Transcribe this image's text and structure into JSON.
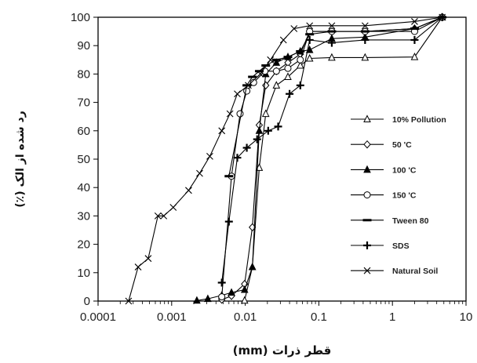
{
  "chart_data": {
    "type": "scatter",
    "xlabel": "قطر ذرات (mm)",
    "ylabel": "رد شده از الک (٪)",
    "xscale": "log",
    "xlim": [
      0.0001,
      10
    ],
    "ylim": [
      0,
      100
    ],
    "x_ticks": [
      "0.0001",
      "0.001",
      "0.01",
      "0.1",
      "1",
      "10"
    ],
    "y_ticks": [
      "0",
      "10",
      "20",
      "30",
      "40",
      "50",
      "60",
      "70",
      "80",
      "90",
      "100"
    ],
    "grid": false,
    "legend_position": "right",
    "series": [
      {
        "name": "10% Pollution",
        "marker": "triangle-open",
        "color": "#000000",
        "points": [
          [
            0.0098,
            0.2
          ],
          [
            0.0125,
            12
          ],
          [
            0.0155,
            47
          ],
          [
            0.019,
            66
          ],
          [
            0.0265,
            76
          ],
          [
            0.038,
            79
          ],
          [
            0.056,
            83
          ],
          [
            0.075,
            85.5
          ],
          [
            0.15,
            85.8
          ],
          [
            0.425,
            85.8
          ],
          [
            2.0,
            86
          ],
          [
            4.75,
            100
          ]
        ]
      },
      {
        "name": "50 'C",
        "marker": "diamond-open",
        "color": "#000000",
        "points": [
          [
            0.0048,
            0.5
          ],
          [
            0.0065,
            1.8
          ],
          [
            0.0098,
            6
          ],
          [
            0.0125,
            26
          ],
          [
            0.0155,
            62
          ],
          [
            0.019,
            76
          ],
          [
            0.0265,
            81
          ],
          [
            0.038,
            84
          ],
          [
            0.056,
            87
          ],
          [
            0.075,
            95
          ],
          [
            0.15,
            95
          ],
          [
            0.425,
            95
          ],
          [
            2.0,
            96
          ],
          [
            4.75,
            100
          ]
        ]
      },
      {
        "name": "100 'C",
        "marker": "triangle-filled",
        "color": "#000000",
        "points": [
          [
            0.0022,
            0.2
          ],
          [
            0.0031,
            0.8
          ],
          [
            0.0048,
            2
          ],
          [
            0.0065,
            3
          ],
          [
            0.0098,
            4
          ],
          [
            0.0125,
            12
          ],
          [
            0.0155,
            60
          ],
          [
            0.019,
            80
          ],
          [
            0.0265,
            84
          ],
          [
            0.038,
            86
          ],
          [
            0.056,
            88
          ],
          [
            0.075,
            88.5
          ],
          [
            0.15,
            92.5
          ],
          [
            0.425,
            93
          ],
          [
            2.0,
            96
          ],
          [
            4.75,
            100
          ]
        ]
      },
      {
        "name": "150 'C",
        "marker": "circle-open",
        "color": "#000000",
        "points": [
          [
            0.0048,
            1.5
          ],
          [
            0.0065,
            44
          ],
          [
            0.0085,
            66
          ],
          [
            0.0105,
            74
          ],
          [
            0.013,
            77
          ],
          [
            0.0185,
            81
          ],
          [
            0.0265,
            81
          ],
          [
            0.038,
            82
          ],
          [
            0.056,
            85
          ],
          [
            0.075,
            95
          ],
          [
            0.15,
            95
          ],
          [
            0.425,
            95
          ],
          [
            2.0,
            95
          ],
          [
            4.75,
            100
          ]
        ]
      },
      {
        "name": "Tween 80",
        "marker": "dash",
        "color": "#000000",
        "points": [
          [
            0.006,
            44
          ],
          [
            0.0105,
            76
          ],
          [
            0.0125,
            79
          ],
          [
            0.0155,
            81
          ],
          [
            0.019,
            83
          ],
          [
            0.0265,
            85
          ],
          [
            0.038,
            86
          ],
          [
            0.056,
            88
          ],
          [
            0.075,
            94
          ],
          [
            0.15,
            95
          ],
          [
            0.425,
            95
          ],
          [
            2.0,
            96
          ],
          [
            4.75,
            100
          ]
        ]
      },
      {
        "name": "SDS",
        "marker": "plus",
        "color": "#000000",
        "points": [
          [
            0.0048,
            6.5
          ],
          [
            0.006,
            28
          ],
          [
            0.0078,
            50.5
          ],
          [
            0.0105,
            54
          ],
          [
            0.0145,
            57
          ],
          [
            0.0205,
            60
          ],
          [
            0.028,
            61.5
          ],
          [
            0.04,
            73
          ],
          [
            0.056,
            76
          ],
          [
            0.075,
            92
          ],
          [
            0.15,
            91
          ],
          [
            0.425,
            92
          ],
          [
            2.0,
            92
          ],
          [
            4.75,
            100
          ]
        ]
      },
      {
        "name": "Natural Soil",
        "marker": "x",
        "color": "#000000",
        "points": [
          [
            0.00026,
            0
          ],
          [
            0.00035,
            12
          ],
          [
            0.00048,
            15
          ],
          [
            0.00065,
            30
          ],
          [
            0.00078,
            30
          ],
          [
            0.00105,
            33
          ],
          [
            0.0017,
            39
          ],
          [
            0.0024,
            45
          ],
          [
            0.0033,
            51
          ],
          [
            0.0048,
            60
          ],
          [
            0.0062,
            66
          ],
          [
            0.0078,
            73
          ],
          [
            0.011,
            76
          ],
          [
            0.016,
            80
          ],
          [
            0.022,
            85
          ],
          [
            0.033,
            92
          ],
          [
            0.046,
            96
          ],
          [
            0.075,
            97
          ],
          [
            0.15,
            97
          ],
          [
            0.425,
            97
          ],
          [
            2.0,
            98.5
          ],
          [
            4.75,
            100
          ]
        ]
      }
    ]
  }
}
